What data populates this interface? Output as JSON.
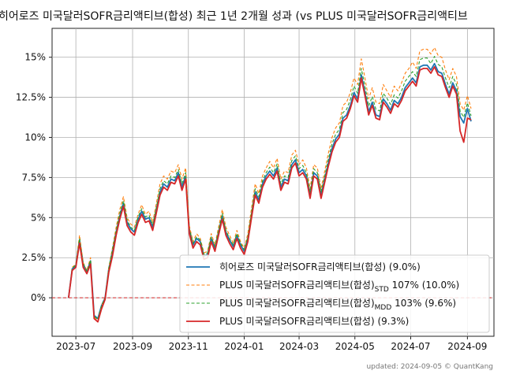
{
  "chart_data": {
    "type": "line",
    "title": "히어로즈 미국달러SOFR금리액티브(합성) 최근 1년 2개월 성과 (vs PLUS 미국달러SOFR금리액티브",
    "x_tick_labels": [
      "2023-07",
      "2023-09",
      "2023-11",
      "2024-01",
      "2024-03",
      "2024-05",
      "2024-07",
      "2024-09"
    ],
    "x_range": [
      "2023-06-05",
      "2024-09-30"
    ],
    "y_tick_labels": [
      "0%",
      "2.5%",
      "5%",
      "7.5%",
      "10%",
      "12.5%",
      "15%"
    ],
    "y_ticks": [
      0,
      2.5,
      5,
      7.5,
      10,
      12.5,
      15
    ],
    "ylim": [
      -2.4,
      16.8
    ],
    "grid": true,
    "legend_position": "lower-right",
    "reference_line": {
      "y": 0,
      "color": "#d62728",
      "style": "dashed"
    },
    "x": [
      "2023-06-23",
      "2023-06-27",
      "2023-07-01",
      "2023-07-05",
      "2023-07-09",
      "2023-07-13",
      "2023-07-17",
      "2023-07-21",
      "2023-07-25",
      "2023-07-29",
      "2023-08-02",
      "2023-08-06",
      "2023-08-10",
      "2023-08-14",
      "2023-08-18",
      "2023-08-22",
      "2023-08-26",
      "2023-08-30",
      "2023-09-03",
      "2023-09-07",
      "2023-09-11",
      "2023-09-15",
      "2023-09-19",
      "2023-09-23",
      "2023-09-27",
      "2023-10-01",
      "2023-10-05",
      "2023-10-09",
      "2023-10-13",
      "2023-10-17",
      "2023-10-21",
      "2023-10-25",
      "2023-10-29",
      "2023-11-02",
      "2023-11-06",
      "2023-11-10",
      "2023-11-14",
      "2023-11-18",
      "2023-11-22",
      "2023-11-26",
      "2023-11-30",
      "2023-12-04",
      "2023-12-08",
      "2023-12-12",
      "2023-12-16",
      "2023-12-20",
      "2023-12-24",
      "2023-12-28",
      "2024-01-01",
      "2024-01-05",
      "2024-01-09",
      "2024-01-13",
      "2024-01-17",
      "2024-01-21",
      "2024-01-25",
      "2024-01-29",
      "2024-02-02",
      "2024-02-06",
      "2024-02-10",
      "2024-02-14",
      "2024-02-18",
      "2024-02-22",
      "2024-02-26",
      "2024-03-01",
      "2024-03-05",
      "2024-03-09",
      "2024-03-13",
      "2024-03-17",
      "2024-03-21",
      "2024-03-25",
      "2024-03-29",
      "2024-04-02",
      "2024-04-06",
      "2024-04-10",
      "2024-04-14",
      "2024-04-18",
      "2024-04-22",
      "2024-04-26",
      "2024-04-30",
      "2024-05-04",
      "2024-05-08",
      "2024-05-12",
      "2024-05-16",
      "2024-05-20",
      "2024-05-24",
      "2024-05-28",
      "2024-06-01",
      "2024-06-05",
      "2024-06-09",
      "2024-06-13",
      "2024-06-17",
      "2024-06-21",
      "2024-06-25",
      "2024-06-29",
      "2024-07-03",
      "2024-07-07",
      "2024-07-11",
      "2024-07-15",
      "2024-07-19",
      "2024-07-23",
      "2024-07-27",
      "2024-07-31",
      "2024-08-04",
      "2024-08-08",
      "2024-08-12",
      "2024-08-16",
      "2024-08-20",
      "2024-08-24",
      "2024-08-28",
      "2024-09-01",
      "2024-09-05"
    ],
    "series": [
      {
        "name": "히어로즈 미국달러SOFR금리액티브(합성) (9.0%)",
        "color": "#1f77b4",
        "style": "solid",
        "width": 1.8,
        "values": [
          0.0,
          1.8,
          2.0,
          3.6,
          2.1,
          1.6,
          2.3,
          -1.1,
          -1.3,
          -0.5,
          0.0,
          1.8,
          2.9,
          4.1,
          5.1,
          5.9,
          4.7,
          4.3,
          4.1,
          4.9,
          5.4,
          4.9,
          5.0,
          4.4,
          5.5,
          6.6,
          7.1,
          6.9,
          7.4,
          7.3,
          7.8,
          6.9,
          7.6,
          4.2,
          3.3,
          3.7,
          3.5,
          2.6,
          2.7,
          3.7,
          3.1,
          4.1,
          5.1,
          4.1,
          3.6,
          3.2,
          3.9,
          3.3,
          2.9,
          3.7,
          5.2,
          6.6,
          6.1,
          7.1,
          7.6,
          7.9,
          7.6,
          8.1,
          6.9,
          7.4,
          7.3,
          8.3,
          8.6,
          7.8,
          8.0,
          7.6,
          6.4,
          7.8,
          7.6,
          6.4,
          7.4,
          8.4,
          9.3,
          9.9,
          10.2,
          11.2,
          11.4,
          12.0,
          12.8,
          12.4,
          13.9,
          12.8,
          11.6,
          12.2,
          11.4,
          11.3,
          12.4,
          12.1,
          11.7,
          12.3,
          12.1,
          12.5,
          13.1,
          13.4,
          13.7,
          13.4,
          14.4,
          14.5,
          14.5,
          14.2,
          14.6,
          14.1,
          14.0,
          13.3,
          12.7,
          13.4,
          12.9,
          11.3,
          10.9,
          11.8,
          11.0
        ]
      },
      {
        "name": "PLUS 미국달러SOFR금리액티브(합성)STD 107% (10.0%)",
        "color": "#ff7f0e",
        "style": "dashed",
        "width": 1.1,
        "values": [
          0.0,
          1.9,
          2.1,
          3.9,
          2.2,
          1.7,
          2.5,
          -1.2,
          -1.4,
          -0.5,
          0.0,
          1.9,
          3.1,
          4.4,
          5.5,
          6.3,
          5.0,
          4.6,
          4.4,
          5.2,
          5.8,
          5.2,
          5.4,
          4.7,
          5.9,
          7.1,
          7.6,
          7.4,
          7.9,
          7.8,
          8.3,
          7.4,
          8.1,
          4.5,
          3.5,
          4.0,
          3.7,
          2.8,
          2.9,
          4.0,
          3.3,
          4.4,
          5.5,
          4.4,
          3.9,
          3.4,
          4.2,
          3.5,
          3.1,
          4.0,
          5.6,
          7.1,
          6.5,
          7.6,
          8.1,
          8.5,
          8.1,
          8.7,
          7.4,
          7.9,
          7.8,
          8.9,
          9.2,
          8.3,
          8.6,
          8.1,
          6.8,
          8.3,
          8.1,
          6.8,
          7.9,
          9.0,
          10.0,
          10.6,
          10.9,
          12.0,
          12.2,
          12.8,
          13.7,
          13.3,
          14.9,
          13.7,
          12.4,
          13.1,
          12.2,
          12.1,
          13.3,
          12.9,
          12.5,
          13.2,
          12.9,
          13.4,
          14.0,
          14.3,
          14.7,
          14.3,
          15.4,
          15.5,
          15.5,
          15.2,
          15.6,
          15.1,
          15.0,
          14.2,
          13.6,
          14.3,
          13.8,
          12.1,
          11.7,
          12.6,
          11.8
        ]
      },
      {
        "name": "PLUS 미국달러SOFR금리액티브(합성)MDD 103% (9.6%)",
        "color": "#2ca02c",
        "style": "dashed",
        "width": 1.1,
        "values": [
          0.0,
          1.85,
          2.05,
          3.7,
          2.15,
          1.65,
          2.35,
          -1.15,
          -1.35,
          -0.5,
          0.0,
          1.85,
          3.0,
          4.2,
          5.25,
          6.05,
          4.85,
          4.4,
          4.2,
          5.05,
          5.55,
          5.05,
          5.15,
          4.55,
          5.65,
          6.8,
          7.3,
          7.1,
          7.6,
          7.5,
          8.0,
          7.1,
          7.8,
          4.35,
          3.4,
          3.8,
          3.6,
          2.7,
          2.8,
          3.8,
          3.2,
          4.2,
          5.25,
          4.2,
          3.7,
          3.3,
          4.0,
          3.4,
          3.0,
          3.8,
          5.35,
          6.8,
          6.3,
          7.3,
          7.8,
          8.15,
          7.8,
          8.35,
          7.1,
          7.6,
          7.5,
          8.55,
          8.85,
          8.05,
          8.25,
          7.8,
          6.6,
          8.05,
          7.8,
          6.6,
          7.6,
          8.65,
          9.6,
          10.2,
          10.5,
          11.55,
          11.75,
          12.35,
          13.2,
          12.75,
          14.3,
          13.2,
          11.95,
          12.55,
          11.75,
          11.65,
          12.75,
          12.45,
          12.05,
          12.65,
          12.45,
          12.9,
          13.5,
          13.8,
          14.1,
          13.8,
          14.85,
          14.95,
          14.95,
          14.6,
          15.05,
          14.55,
          14.4,
          13.7,
          13.1,
          13.8,
          13.3,
          11.65,
          11.25,
          12.15,
          11.35
        ]
      },
      {
        "name": "PLUS 미국달러SOFR금리액티브(합성) (9.3%)",
        "color": "#d62728",
        "style": "solid",
        "width": 1.8,
        "values": [
          0.0,
          1.7,
          1.9,
          3.4,
          1.9,
          1.5,
          2.1,
          -1.3,
          -1.5,
          -0.7,
          -0.1,
          1.6,
          2.6,
          3.9,
          4.9,
          5.7,
          4.5,
          4.1,
          3.9,
          4.7,
          5.2,
          4.7,
          4.8,
          4.2,
          5.3,
          6.4,
          6.9,
          6.7,
          7.2,
          7.1,
          7.6,
          6.7,
          7.4,
          4.0,
          3.1,
          3.5,
          3.3,
          2.4,
          2.5,
          3.5,
          2.9,
          3.9,
          4.9,
          3.9,
          3.4,
          3.0,
          3.7,
          3.1,
          2.7,
          3.5,
          5.0,
          6.4,
          5.9,
          6.9,
          7.4,
          7.7,
          7.4,
          7.9,
          6.7,
          7.2,
          7.1,
          8.1,
          8.4,
          7.6,
          7.8,
          7.4,
          6.2,
          7.6,
          7.4,
          6.2,
          7.2,
          8.2,
          9.1,
          9.7,
          10.0,
          11.0,
          11.2,
          11.8,
          12.6,
          12.2,
          13.7,
          12.6,
          11.4,
          12.0,
          11.2,
          11.1,
          12.2,
          11.9,
          11.5,
          12.1,
          11.9,
          12.3,
          12.9,
          13.2,
          13.5,
          13.2,
          14.2,
          14.3,
          14.3,
          14.0,
          14.4,
          13.9,
          13.8,
          13.1,
          12.5,
          13.2,
          12.7,
          10.4,
          9.7,
          11.2,
          11.1
        ]
      }
    ]
  },
  "legend": {
    "items": [
      {
        "main": "히어로즈 미국달러SOFR금리액티브(합성) (9.0%)",
        "sub": "",
        "tail": ""
      },
      {
        "main": "PLUS 미국달러SOFR금리액티브(합성)",
        "sub": "STD",
        "tail": " 107% (10.0%)"
      },
      {
        "main": "PLUS 미국달러SOFR금리액티브(합성)",
        "sub": "MDD",
        "tail": " 103% (9.6%)"
      },
      {
        "main": "PLUS 미국달러SOFR금리액티브(합성) (9.3%)",
        "sub": "",
        "tail": ""
      }
    ]
  },
  "footer": "updated: 2024-09-05 © QuantKang"
}
